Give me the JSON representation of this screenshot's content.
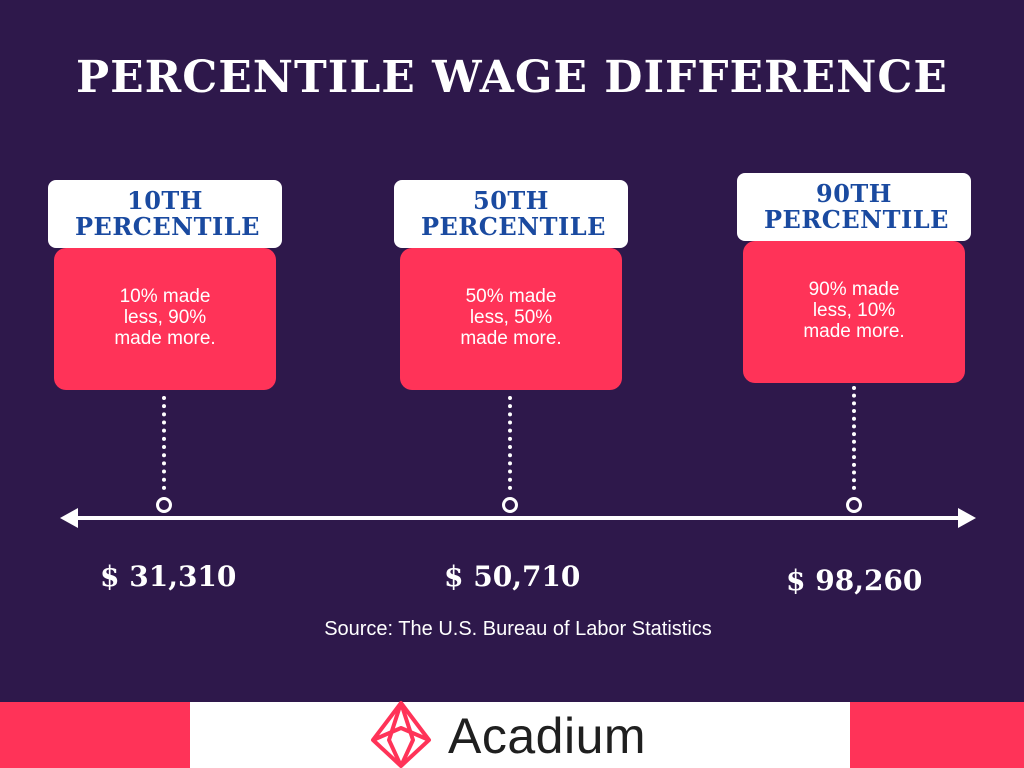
{
  "title": "PERCENTILE WAGE DIFFERENCE",
  "percentiles": [
    {
      "label": "10TH PERCENTILE",
      "description": "10% made less, 90% made more.",
      "wage": "$ 31,310"
    },
    {
      "label": "50TH PERCENTILE",
      "description": "50% made less, 50% made more.",
      "wage": "$ 50,710"
    },
    {
      "label": "90TH PERCENTILE",
      "description": "90% made less, 10% made more.",
      "wage": "$ 98,260"
    }
  ],
  "source": "Source: The U.S. Bureau of Labor Statistics",
  "brand": {
    "name": "Acadium",
    "icon": "acadium-logo-icon"
  },
  "colors": {
    "background": "#2e184b",
    "accent": "#ff3358",
    "header_text": "#1a4aa0",
    "white": "#ffffff"
  }
}
